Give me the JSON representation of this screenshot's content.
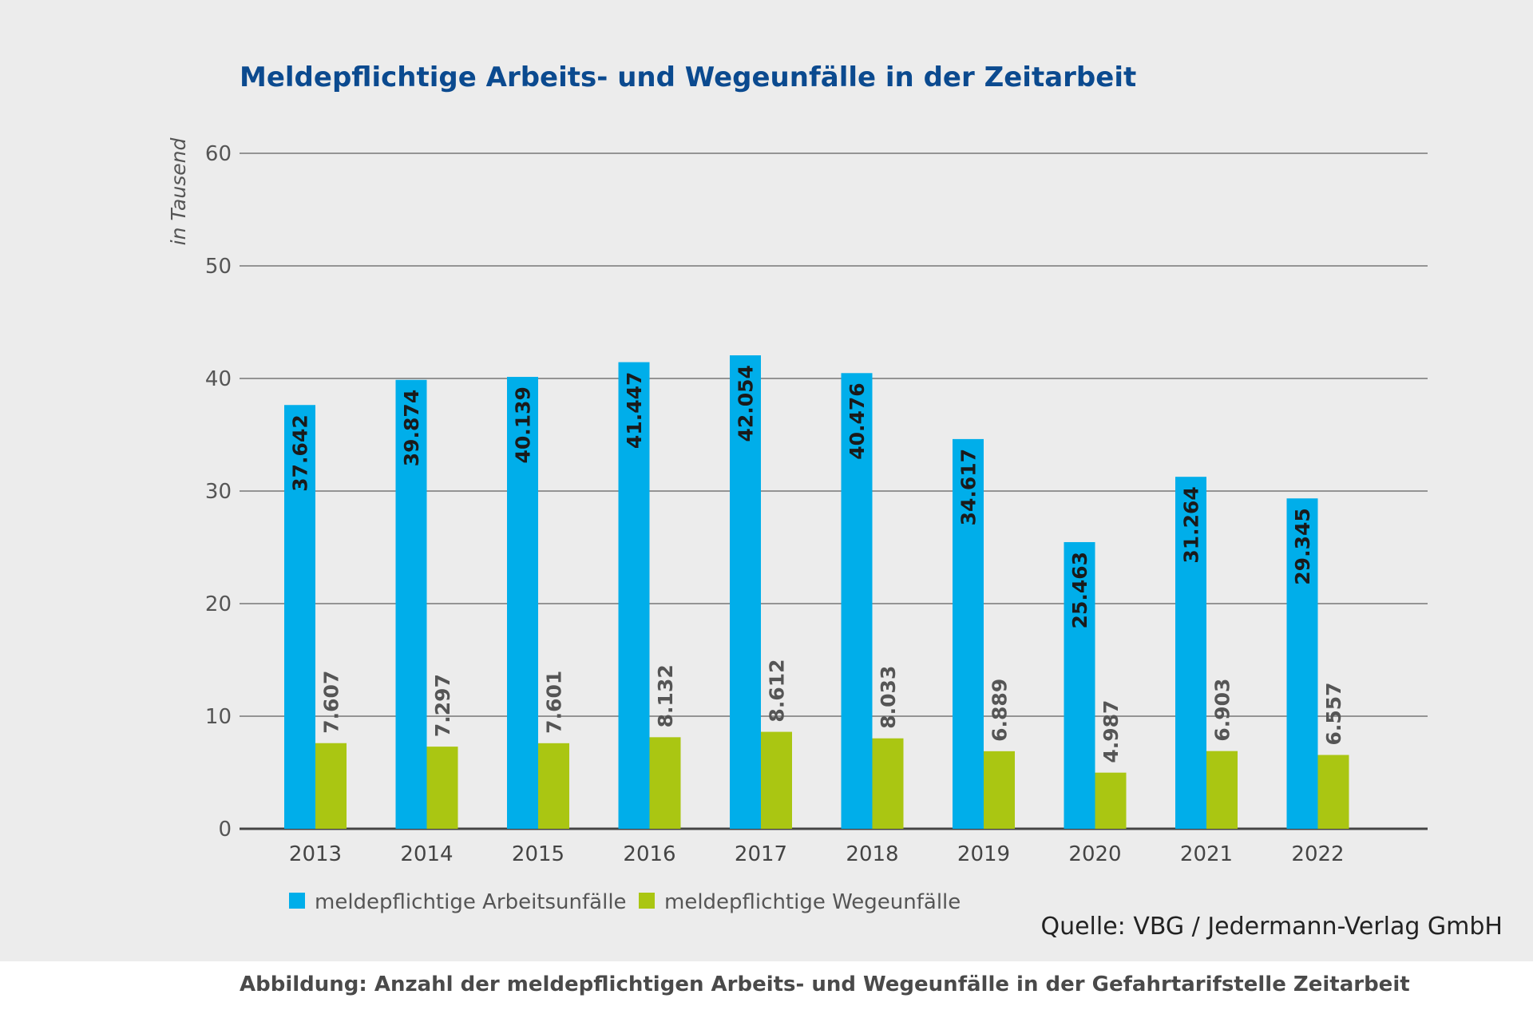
{
  "chart_data": {
    "type": "bar",
    "title": "Meldepflichtige Arbeits- und Wegeunfälle in der Zeitarbeit",
    "ylabel": "in Tausend",
    "xlabel": "",
    "ylim": [
      0,
      60
    ],
    "yticks": [
      0,
      10,
      20,
      30,
      40,
      50,
      60
    ],
    "categories": [
      "2013",
      "2014",
      "2015",
      "2016",
      "2017",
      "2018",
      "2019",
      "2020",
      "2021",
      "2022"
    ],
    "series": [
      {
        "name": "meldepflichtige Arbeitsunfälle",
        "color": "#00aeea",
        "values": [
          37.642,
          39.874,
          40.139,
          41.447,
          42.054,
          40.476,
          34.617,
          25.463,
          31.264,
          29.345
        ],
        "labels": [
          "37.642",
          "39.874",
          "40.139",
          "41.447",
          "42.054",
          "40.476",
          "34.617",
          "25.463",
          "31.264",
          "29.345"
        ]
      },
      {
        "name": "meldepflichtige Wegeunfälle",
        "color": "#aac612",
        "values": [
          7.607,
          7.297,
          7.601,
          8.132,
          8.612,
          8.033,
          6.889,
          4.987,
          6.903,
          6.557
        ],
        "labels": [
          "7.607",
          "7.297",
          "7.601",
          "8.132",
          "8.612",
          "8.033",
          "6.889",
          "4.987",
          "6.903",
          "6.557"
        ]
      }
    ],
    "grid": true,
    "legend": "bottom-left",
    "source": "Quelle: VBG / Jedermann-Verlag GmbH"
  },
  "colors": {
    "title": "#0b4a8f",
    "axis_text": "#555555",
    "grid": "#777777",
    "bar_label_dark": "#1a1a1a",
    "bar_label_light": "#555555"
  },
  "caption": "Abbildung: Anzahl der meldepflichtigen Arbeits- und Wegeunfälle in der Gefahrtarifstelle Zeitarbeit"
}
